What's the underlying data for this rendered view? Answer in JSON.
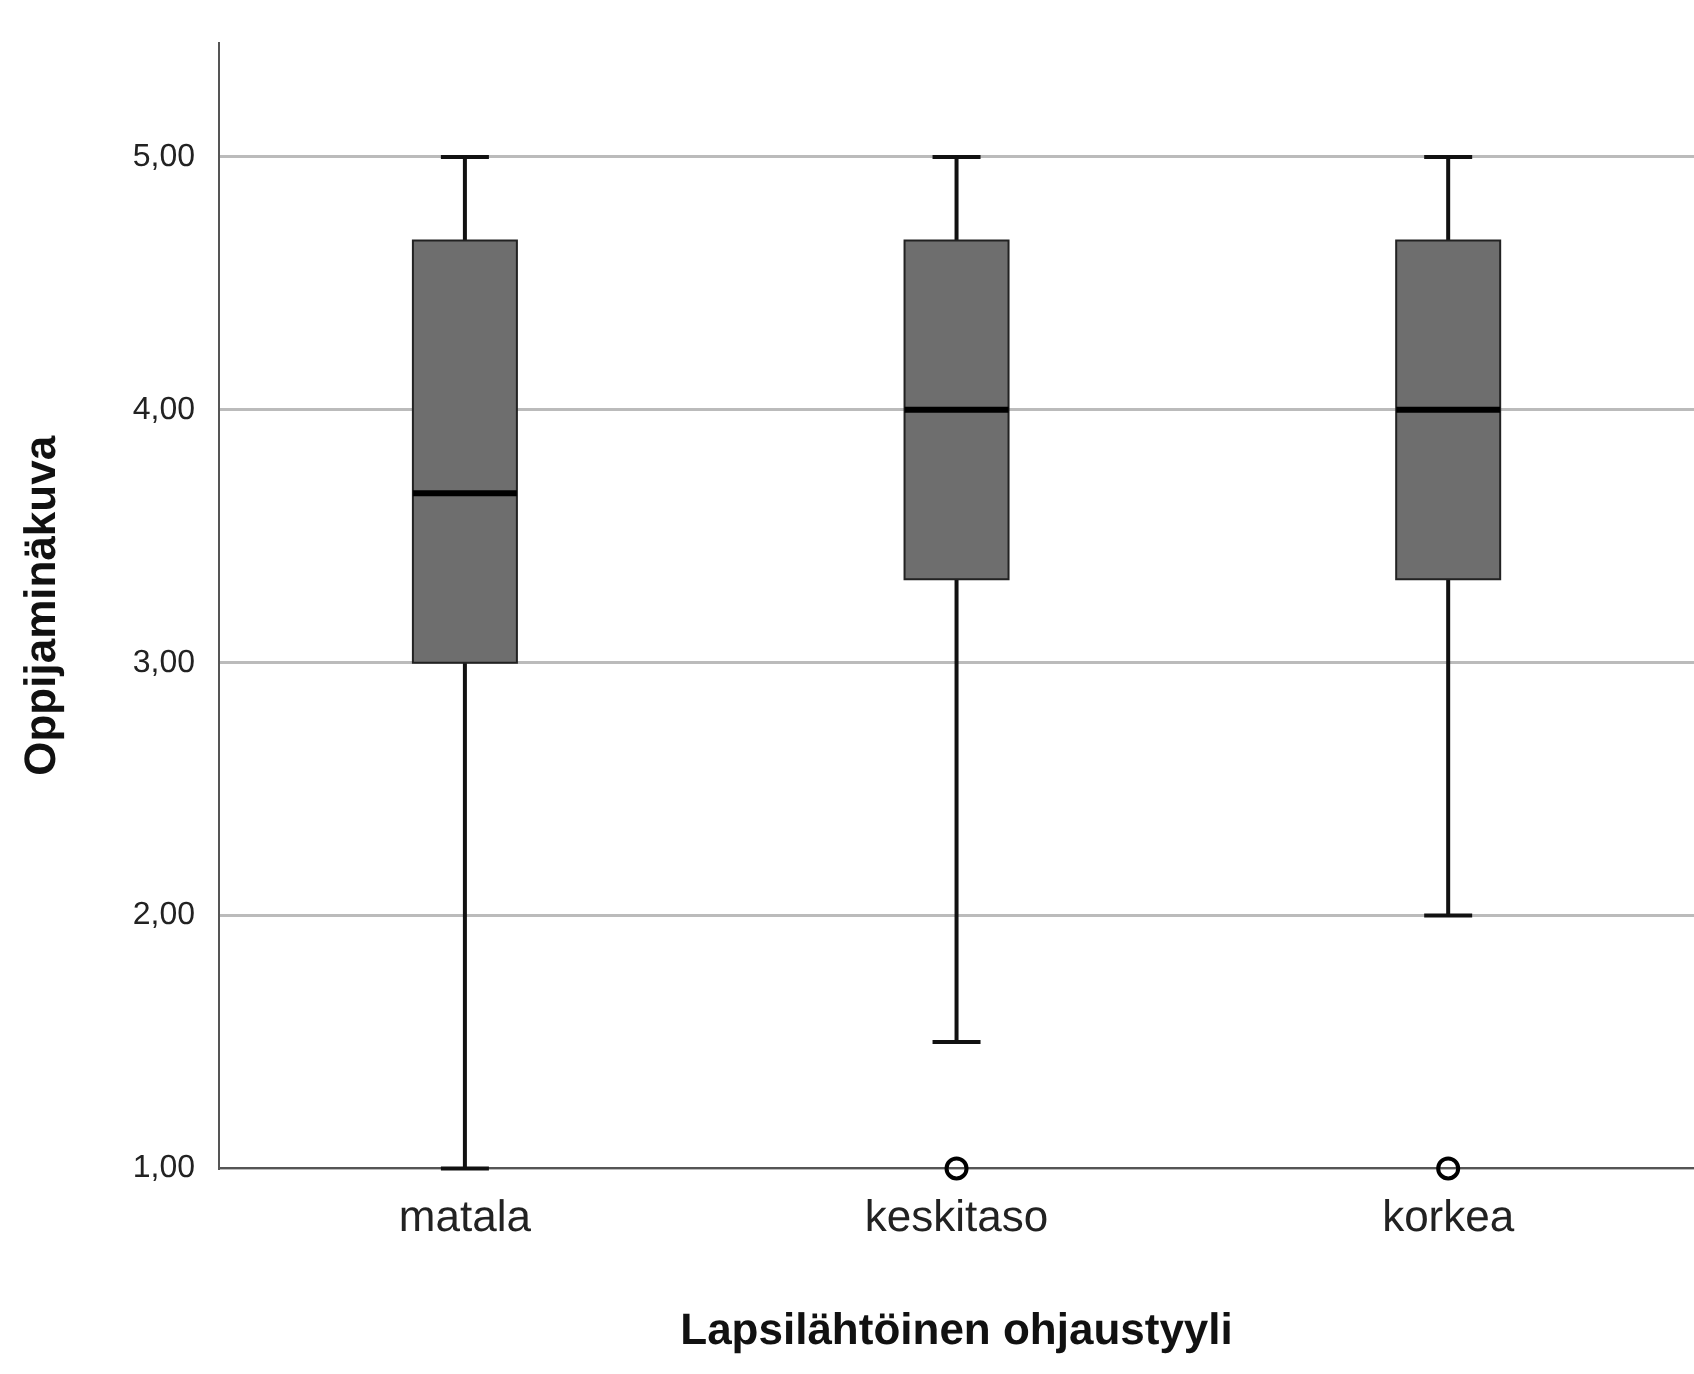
{
  "chart_data": {
    "type": "box",
    "xlabel": "Lapsilähtöinen ohjaustyyli",
    "ylabel": "Oppijaminäkuva",
    "categories": [
      "matala",
      "keskitaso",
      "korkea"
    ],
    "color": "#6e6e6e",
    "boxes": [
      {
        "low": 1,
        "q1": 3,
        "median": 3.67,
        "q3": 4.67,
        "high": 5
      },
      {
        "low": 1.5,
        "q1": 3.33,
        "median": 4,
        "q3": 4.67,
        "high": 5,
        "outliers": [
          1
        ]
      },
      {
        "low": 2,
        "q1": 3.33,
        "median": 4,
        "q3": 4.67,
        "high": 5,
        "outliers": [
          1
        ]
      }
    ],
    "ylim": [
      1,
      5.45
    ],
    "yticks": [
      {
        "value": 1,
        "label": "1,00"
      },
      {
        "value": 2,
        "label": "2,00"
      },
      {
        "value": 3,
        "label": "3,00"
      },
      {
        "value": 4,
        "label": "4,00"
      },
      {
        "value": 5,
        "label": "5,00"
      }
    ],
    "grid": "y"
  }
}
